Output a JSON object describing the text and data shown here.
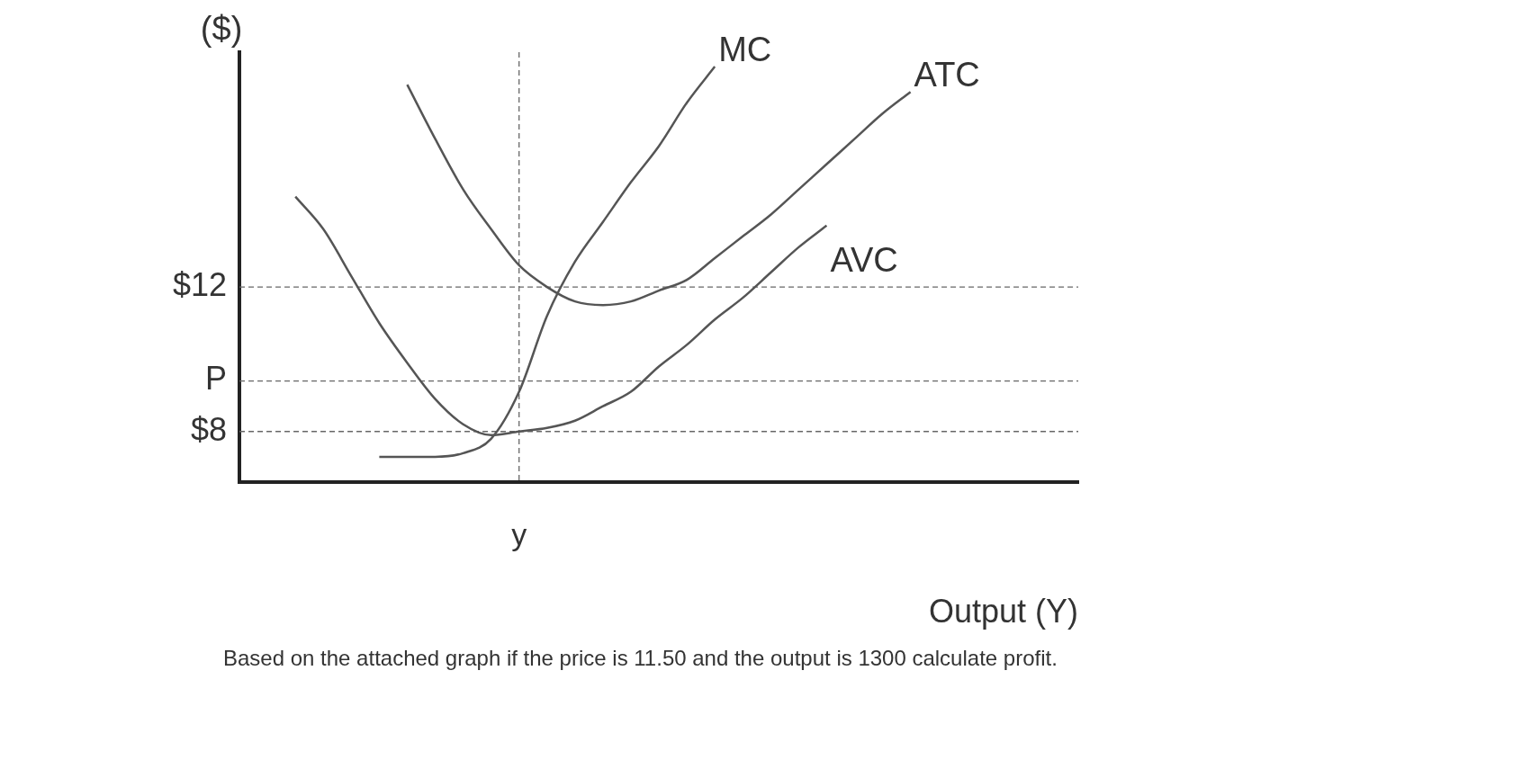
{
  "chart_data": {
    "type": "line",
    "ylabel": "($)",
    "xlabel": "Output (Y)",
    "categories": [
      null,
      null,
      null,
      null,
      null,
      null,
      null,
      null,
      null,
      null,
      "y",
      null,
      null,
      null,
      null,
      null,
      null,
      null,
      null,
      null,
      null,
      null,
      null,
      null,
      null,
      null,
      null,
      null,
      null,
      null,
      null
    ],
    "series": [
      {
        "name": "MC",
        "color": "#555555",
        "values": [
          null,
          null,
          null,
          null,
          null,
          7.3,
          7.3,
          7.3,
          7.4,
          7.8,
          9.1,
          11.2,
          12.7,
          13.8,
          14.9,
          15.9,
          17.1,
          18.1,
          null,
          null,
          null,
          null,
          null,
          null,
          null,
          null,
          null,
          null,
          null,
          null,
          null
        ]
      },
      {
        "name": "ATC",
        "color": "#555555",
        "values": [
          null,
          null,
          null,
          null,
          null,
          null,
          17.6,
          16.1,
          14.7,
          13.6,
          12.6,
          12.0,
          11.6,
          11.5,
          11.6,
          11.9,
          12.2,
          12.8,
          13.4,
          14.0,
          14.7,
          15.4,
          16.1,
          16.8,
          17.4,
          null,
          null,
          null,
          null,
          null,
          null
        ]
      },
      {
        "name": "AVC",
        "color": "#555555",
        "values": [
          null,
          null,
          14.5,
          13.6,
          12.3,
          11.0,
          9.9,
          8.9,
          8.2,
          7.9,
          8.0,
          8.1,
          8.3,
          8.7,
          9.1,
          9.8,
          10.4,
          11.1,
          11.7,
          12.4,
          13.1,
          13.7,
          null,
          null,
          null,
          null,
          null,
          null,
          null,
          null,
          null
        ]
      }
    ],
    "ylim": [
      6.6,
      18.5
    ],
    "yticks": [
      {
        "value": 8,
        "label": "$8"
      },
      {
        "value": 9.4,
        "label": "P"
      },
      {
        "value": 12,
        "label": "$12"
      }
    ],
    "ref_lines": [
      {
        "axis": "y",
        "value": 12,
        "line_style": "dashed"
      },
      {
        "axis": "y",
        "value": 9.4,
        "line_style": "dashed"
      },
      {
        "axis": "y",
        "value": 8,
        "line_style": "dashed"
      },
      {
        "axis": "x",
        "value": "y",
        "line_style": "dashed"
      }
    ],
    "grid": false,
    "legend": false,
    "marker": "none",
    "line_style": "solid",
    "annotations": [
      "Based on the attached graph if the price is 11.50 and the output is 1300 calculate profit."
    ]
  }
}
